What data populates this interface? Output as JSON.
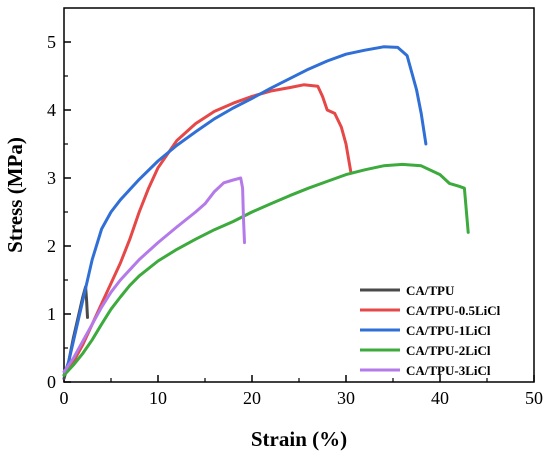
{
  "chart_data": {
    "type": "line",
    "title": "",
    "xlabel": "Strain (%)",
    "ylabel": "Stress (MPa)",
    "xlim": [
      0,
      50
    ],
    "ylim": [
      0,
      5.5
    ],
    "xticks": [
      "0",
      "10",
      "20",
      "30",
      "40",
      "50"
    ],
    "yticks": [
      "0",
      "1",
      "2",
      "3",
      "4",
      "5"
    ],
    "grid": false,
    "legend_position": "bottom-right",
    "series": [
      {
        "name": "CA/TPU",
        "color": "#4a4a4a",
        "points": [
          [
            0,
            0.05
          ],
          [
            0.5,
            0.3
          ],
          [
            1.0,
            0.65
          ],
          [
            1.5,
            0.95
          ],
          [
            2.0,
            1.25
          ],
          [
            2.3,
            1.4
          ],
          [
            2.4,
            1.2
          ],
          [
            2.5,
            0.95
          ]
        ]
      },
      {
        "name": "CA/TPU-0.5LiCl",
        "color": "#e64747",
        "points": [
          [
            0,
            0.1
          ],
          [
            1,
            0.3
          ],
          [
            2,
            0.55
          ],
          [
            3,
            0.85
          ],
          [
            4,
            1.15
          ],
          [
            5,
            1.45
          ],
          [
            6,
            1.75
          ],
          [
            7,
            2.1
          ],
          [
            8,
            2.5
          ],
          [
            9,
            2.85
          ],
          [
            10,
            3.15
          ],
          [
            12,
            3.55
          ],
          [
            14,
            3.8
          ],
          [
            16,
            3.98
          ],
          [
            18,
            4.1
          ],
          [
            20,
            4.2
          ],
          [
            22,
            4.28
          ],
          [
            24,
            4.33
          ],
          [
            25.5,
            4.37
          ],
          [
            27,
            4.35
          ],
          [
            27.5,
            4.2
          ],
          [
            28,
            4.0
          ],
          [
            28.8,
            3.95
          ],
          [
            29.5,
            3.75
          ],
          [
            30,
            3.5
          ],
          [
            30.5,
            3.1
          ]
        ]
      },
      {
        "name": "CA/TPU-1LiCl",
        "color": "#2f6fd6",
        "points": [
          [
            0,
            0.1
          ],
          [
            0.5,
            0.3
          ],
          [
            1,
            0.6
          ],
          [
            2,
            1.2
          ],
          [
            3,
            1.8
          ],
          [
            4,
            2.25
          ],
          [
            5,
            2.5
          ],
          [
            6,
            2.68
          ],
          [
            8,
            2.98
          ],
          [
            10,
            3.25
          ],
          [
            12,
            3.48
          ],
          [
            14,
            3.68
          ],
          [
            16,
            3.87
          ],
          [
            18,
            4.03
          ],
          [
            20,
            4.17
          ],
          [
            22,
            4.32
          ],
          [
            24,
            4.46
          ],
          [
            26,
            4.6
          ],
          [
            28,
            4.72
          ],
          [
            30,
            4.82
          ],
          [
            32,
            4.88
          ],
          [
            34,
            4.93
          ],
          [
            35.5,
            4.92
          ],
          [
            36.5,
            4.8
          ],
          [
            37,
            4.55
          ],
          [
            37.5,
            4.3
          ],
          [
            38,
            3.95
          ],
          [
            38.5,
            3.5
          ]
        ]
      },
      {
        "name": "CA/TPU-2LiCl",
        "color": "#3caa3c",
        "points": [
          [
            0,
            0.1
          ],
          [
            1,
            0.25
          ],
          [
            2,
            0.42
          ],
          [
            3,
            0.62
          ],
          [
            4,
            0.85
          ],
          [
            5,
            1.07
          ],
          [
            6,
            1.25
          ],
          [
            7,
            1.42
          ],
          [
            8,
            1.56
          ],
          [
            10,
            1.78
          ],
          [
            12,
            1.95
          ],
          [
            14,
            2.1
          ],
          [
            16,
            2.24
          ],
          [
            18,
            2.36
          ],
          [
            20,
            2.5
          ],
          [
            22,
            2.62
          ],
          [
            24,
            2.74
          ],
          [
            26,
            2.85
          ],
          [
            28,
            2.95
          ],
          [
            30,
            3.05
          ],
          [
            32,
            3.12
          ],
          [
            34,
            3.18
          ],
          [
            36,
            3.2
          ],
          [
            38,
            3.18
          ],
          [
            40,
            3.05
          ],
          [
            41,
            2.92
          ],
          [
            42,
            2.88
          ],
          [
            42.6,
            2.85
          ],
          [
            43,
            2.2
          ]
        ]
      },
      {
        "name": "CA/TPU-3LiCl",
        "color": "#b57aea",
        "points": [
          [
            0,
            0.15
          ],
          [
            1,
            0.35
          ],
          [
            2,
            0.6
          ],
          [
            3,
            0.85
          ],
          [
            4,
            1.1
          ],
          [
            5,
            1.32
          ],
          [
            6,
            1.5
          ],
          [
            7,
            1.65
          ],
          [
            8,
            1.8
          ],
          [
            10,
            2.05
          ],
          [
            12,
            2.28
          ],
          [
            14,
            2.5
          ],
          [
            15,
            2.62
          ],
          [
            16,
            2.8
          ],
          [
            17,
            2.93
          ],
          [
            18,
            2.97
          ],
          [
            18.8,
            3.0
          ],
          [
            19,
            2.85
          ],
          [
            19.1,
            2.4
          ],
          [
            19.2,
            2.05
          ]
        ]
      }
    ]
  }
}
